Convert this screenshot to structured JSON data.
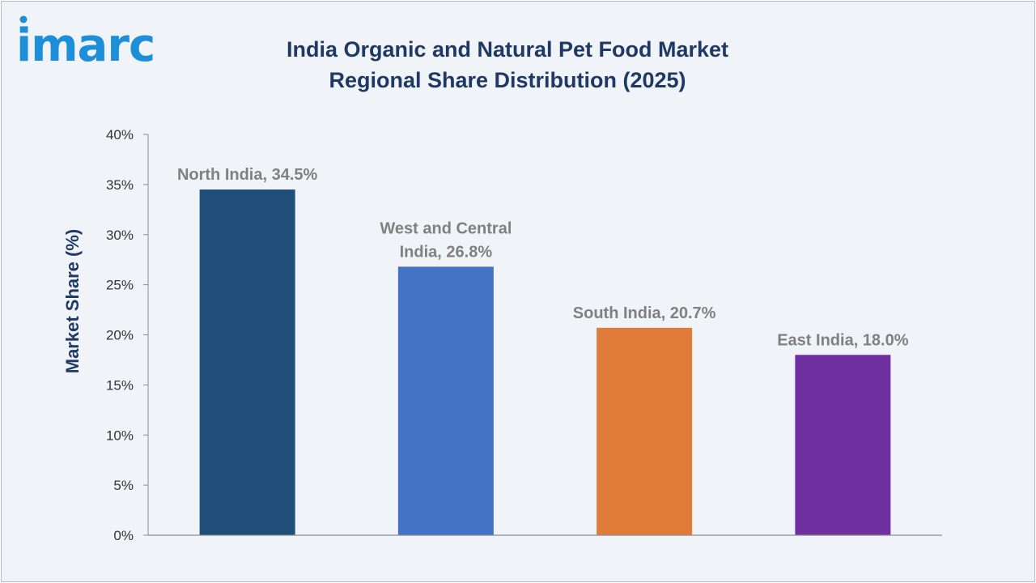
{
  "brand": {
    "logo_text": "imarc",
    "logo_color": "#1d8ed8"
  },
  "chart_data": {
    "type": "bar",
    "title": "India Organic and Natural Pet Food Market Regional Share Distribution (2025)",
    "xlabel": "",
    "ylabel": "Market Share (%)",
    "ylim": [
      0,
      40
    ],
    "yticks": [
      0,
      5,
      10,
      15,
      20,
      25,
      30,
      35,
      40
    ],
    "ytick_labels": [
      "0%",
      "5%",
      "10%",
      "15%",
      "20%",
      "25%",
      "30%",
      "35%",
      "40%"
    ],
    "categories": [
      "North India",
      "West and Central India",
      "South India",
      "East India"
    ],
    "values": [
      34.5,
      26.8,
      20.7,
      18.0
    ],
    "data_labels": [
      [
        "North India, 34.5%"
      ],
      [
        "West and Central",
        "India, 26.8%"
      ],
      [
        "South India, 20.7%"
      ],
      [
        "East India, 18.0%"
      ]
    ],
    "colors": [
      "#1f4e79",
      "#4472c4",
      "#e07b39",
      "#7030a0"
    ],
    "grid": false,
    "legend": "none"
  }
}
